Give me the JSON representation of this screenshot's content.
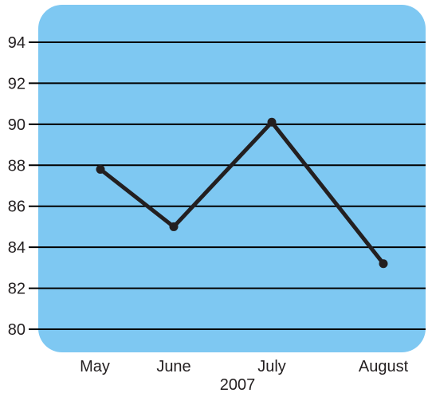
{
  "chart_data": {
    "type": "line",
    "title": "",
    "xlabel": "2007",
    "ylabel": "",
    "categories": [
      "May",
      "June",
      "July",
      "August"
    ],
    "series": [
      {
        "values": [
          87.8,
          85.0,
          90.1,
          83.2
        ]
      }
    ],
    "ylim": [
      80,
      94
    ],
    "yticks": [
      "80",
      "82",
      "84",
      "86",
      "88",
      "90",
      "92",
      "94"
    ],
    "grid": true,
    "colors": {
      "plot_background": "#7ec8f2",
      "line": "#231f20",
      "grid": "#000000",
      "text": "#231f20"
    }
  }
}
